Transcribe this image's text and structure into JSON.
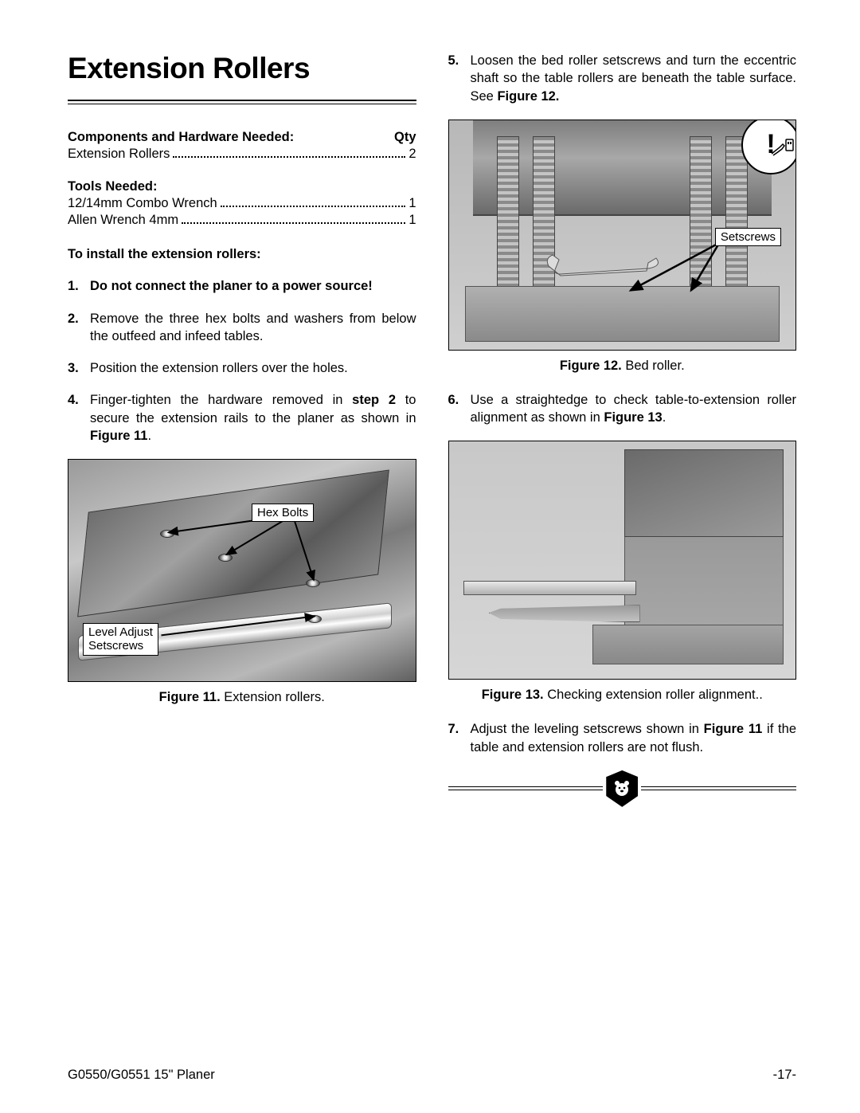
{
  "title": "Extension Rollers",
  "components": {
    "heading": "Components and Hardware Needed:",
    "qty_label": "Qty",
    "items": [
      {
        "label": "Extension Rollers",
        "qty": "2"
      }
    ]
  },
  "tools": {
    "heading": "Tools Needed:",
    "items": [
      {
        "label": "12/14mm Combo Wrench",
        "qty": "1"
      },
      {
        "label": "Allen Wrench 4mm",
        "qty": "1"
      }
    ]
  },
  "install_heading": "To install the extension rollers:",
  "steps_left": [
    {
      "n": "1.",
      "html": "Do not connect the planer to a power source!",
      "bold": true
    },
    {
      "n": "2.",
      "html": "Remove the three hex bolts and washers from below the outfeed and infeed tables."
    },
    {
      "n": "3.",
      "html": "Position the extension rollers over the holes."
    },
    {
      "n": "4.",
      "html": "Finger-tighten the hardware removed in <b>step 2</b> to secure the extension rails to the planer as shown in <b>Figure 11</b>."
    }
  ],
  "steps_right": [
    {
      "n": "5.",
      "html": "Loosen the bed roller setscrews and turn the eccentric shaft so the table rollers are beneath the table surface. See <b>Figure 12.</b>"
    },
    {
      "n": "6.",
      "html": "Use a straightedge to check table-to-extension roller alignment as shown in <b>Figure 13</b>."
    },
    {
      "n": "7.",
      "html": "Adjust the leveling setscrews shown in <b>Figure 11</b> if the table and extension rollers are not flush."
    }
  ],
  "fig11": {
    "callouts": {
      "hex": "Hex Bolts",
      "level": "Level Adjust\nSetscrews"
    },
    "caption_bold": "Figure 11.",
    "caption_rest": " Extension rollers."
  },
  "fig12": {
    "callouts": {
      "setscrews": "Setscrews"
    },
    "warning_glyph": "!",
    "caption_bold": "Figure 12.",
    "caption_rest": " Bed roller."
  },
  "fig13": {
    "caption_bold": "Figure 13.",
    "caption_rest": " Checking extension roller alignment.."
  },
  "footer": {
    "left": "G0550/G0551 15\" Planer",
    "right": "-17-"
  },
  "colors": {
    "text": "#000000",
    "page_bg": "#ffffff",
    "figure_bg_mid": "#bcbcbc",
    "metal_light": "#c8c8c8",
    "metal_dark": "#7a7a7a"
  }
}
